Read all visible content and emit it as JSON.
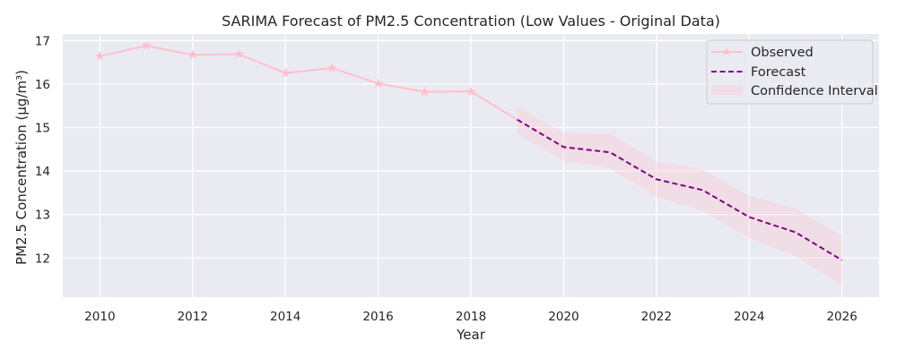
{
  "chart_data": {
    "type": "line",
    "title": "SARIMA Forecast of PM2.5 Concentration (Low Values - Original Data)",
    "xlabel": "Year",
    "ylabel": "PM2.5 Concentration (µg/m³)",
    "xlim": [
      2009.2,
      2026.8
    ],
    "ylim": [
      11.1,
      17.15
    ],
    "xticks": [
      2010,
      2012,
      2014,
      2016,
      2018,
      2020,
      2022,
      2024,
      2026
    ],
    "yticks": [
      12,
      13,
      14,
      15,
      16,
      17
    ],
    "grid": true,
    "legend_position": "top-right",
    "series": [
      {
        "name": "Observed",
        "style": "solid",
        "marker": "star",
        "color": "#ffc0cb",
        "x": [
          2010,
          2011,
          2012,
          2013,
          2014,
          2015,
          2016,
          2017,
          2018
        ],
        "y": [
          16.64,
          16.88,
          16.67,
          16.69,
          16.25,
          16.37,
          16.01,
          15.82,
          15.83
        ]
      },
      {
        "name": "Forecast",
        "style": "dashed",
        "color": "#800080",
        "x": [
          2019,
          2020,
          2021,
          2022,
          2023,
          2024,
          2025,
          2026
        ],
        "y": [
          15.18,
          14.55,
          14.43,
          13.81,
          13.56,
          12.94,
          12.59,
          11.95
        ]
      },
      {
        "name": "Confidence Interval",
        "type": "band",
        "color": "#ffc0cb",
        "x": [
          2019,
          2020,
          2021,
          2022,
          2023,
          2024,
          2025,
          2026
        ],
        "lower": [
          14.85,
          14.23,
          14.06,
          13.4,
          13.08,
          12.46,
          12.04,
          11.38
        ],
        "upper": [
          15.48,
          14.87,
          14.86,
          14.23,
          14.03,
          13.43,
          13.13,
          12.52
        ]
      }
    ]
  }
}
